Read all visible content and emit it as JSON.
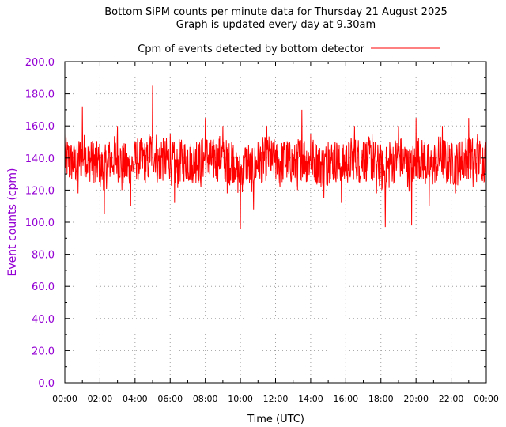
{
  "chart_data": {
    "type": "line",
    "title": "Bottom SiPM counts per minute data for Thursday 21 August 2025",
    "subtitle": "Graph is updated every day at 9.30am",
    "xlabel": "Time (UTC)",
    "ylabel": "Event counts (cpm)",
    "xlim": [
      "00:00",
      "24:00"
    ],
    "ylim": [
      0,
      200
    ],
    "x_ticks": [
      "00:00",
      "02:00",
      "04:00",
      "06:00",
      "08:00",
      "10:00",
      "12:00",
      "14:00",
      "16:00",
      "18:00",
      "20:00",
      "22:00",
      "00:00"
    ],
    "y_ticks": [
      "0.0",
      "20.0",
      "40.0",
      "60.0",
      "80.0",
      "100.0",
      "120.0",
      "140.0",
      "160.0",
      "180.0",
      "200.0"
    ],
    "grid": true,
    "legend_position": "top",
    "series": [
      {
        "name": "Cpm of events detected by bottom detector",
        "color": "#ff0000",
        "x_hours": [
          0,
          0.25,
          0.5,
          0.75,
          1,
          1.25,
          1.5,
          1.75,
          2,
          2.25,
          2.5,
          2.75,
          3,
          3.25,
          3.5,
          3.75,
          4,
          4.25,
          4.5,
          4.75,
          5,
          5.25,
          5.5,
          5.75,
          6,
          6.25,
          6.5,
          6.75,
          7,
          7.25,
          7.5,
          7.75,
          8,
          8.25,
          8.5,
          8.75,
          9,
          9.25,
          9.5,
          9.75,
          10,
          10.25,
          10.5,
          10.75,
          11,
          11.25,
          11.5,
          11.75,
          12,
          12.25,
          12.5,
          12.75,
          13,
          13.25,
          13.5,
          13.75,
          14,
          14.25,
          14.5,
          14.75,
          15,
          15.25,
          15.5,
          15.75,
          16,
          16.25,
          16.5,
          16.75,
          17,
          17.25,
          17.5,
          17.75,
          18,
          18.25,
          18.5,
          18.75,
          19,
          19.25,
          19.5,
          19.75,
          20,
          20.25,
          20.5,
          20.75,
          21,
          21.25,
          21.5,
          21.75,
          22,
          22.25,
          22.5,
          22.75,
          23,
          23.25,
          23.5,
          23.75,
          24
        ],
        "values": [
          155,
          128,
          145,
          118,
          172,
          130,
          150,
          125,
          142,
          105,
          148,
          132,
          160,
          120,
          140,
          110,
          150,
          135,
          145,
          128,
          185,
          125,
          150,
          130,
          155,
          112,
          140,
          135,
          145,
          126,
          150,
          122,
          165,
          130,
          148,
          135,
          160,
          118,
          150,
          128,
          96,
          140,
          130,
          108,
          150,
          125,
          160,
          132,
          145,
          122,
          150,
          130,
          140,
          120,
          170,
          125,
          155,
          128,
          142,
          115,
          150,
          130,
          148,
          112,
          145,
          128,
          160,
          125,
          150,
          132,
          155,
          118,
          140,
          97,
          150,
          125,
          160,
          130,
          145,
          98,
          165,
          128,
          150,
          110,
          140,
          132,
          160,
          124,
          145,
          118,
          150,
          130,
          165,
          122,
          155,
          130,
          150
        ]
      }
    ]
  }
}
